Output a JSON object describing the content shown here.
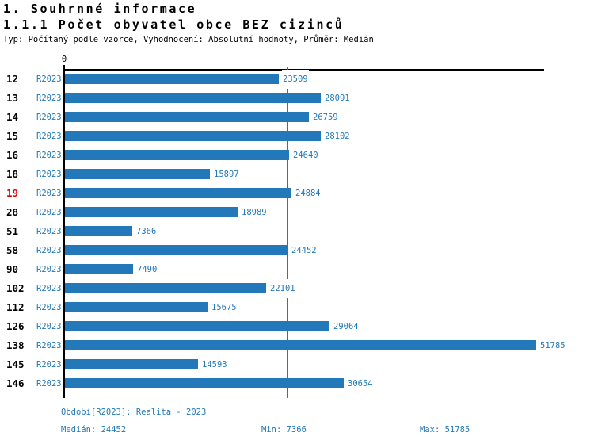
{
  "page": {
    "title": "1. Souhrnné informace",
    "subtitle": "1.1.1 Počet obyvatel obce BEZ cizinců",
    "description": "Typ: Počítaný podle vzorce, Vyhodnocení: Absolutní hodnoty, Průměr: Medián"
  },
  "chart_data": {
    "type": "bar",
    "orientation": "horizontal",
    "title": "1.1.1 Počet obyvatel obce BEZ cizinců",
    "origin_tick_label": "0",
    "series_label": "R2023",
    "categories": [
      "12",
      "13",
      "14",
      "15",
      "16",
      "18",
      "19",
      "28",
      "51",
      "58",
      "90",
      "102",
      "112",
      "126",
      "138",
      "145",
      "146"
    ],
    "values": [
      23509,
      28091,
      26759,
      28102,
      24640,
      15897,
      24884,
      18989,
      7366,
      24452,
      7490,
      22101,
      15675,
      29064,
      51785,
      14593,
      30654
    ],
    "highlighted_category": "19",
    "median_value": 24452,
    "min_value": 7366,
    "max_value": 51785,
    "axis_range": [
      0,
      52500
    ],
    "grid": false,
    "legend": false,
    "median_line": true,
    "value_labels": "right-of-bar",
    "colors": {
      "bar": "#2278b8",
      "blue_text": "#2278b8",
      "median_line": "#2278b8",
      "highlight_red": "#dc0000",
      "axis": "#000000"
    }
  },
  "footer": {
    "period": "Období[R2023]: Realita - 2023",
    "median": "Medián: 24452",
    "min": "Min: 7366",
    "max": "Max: 51785"
  }
}
